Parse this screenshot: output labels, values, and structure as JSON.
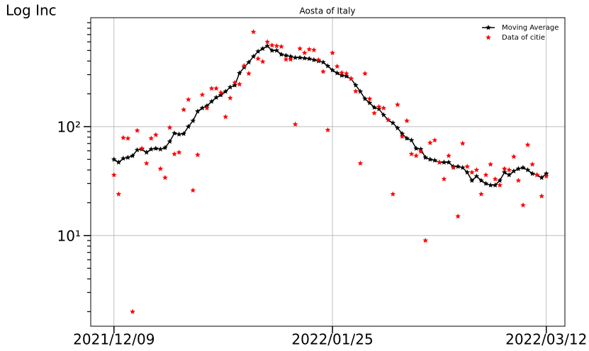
{
  "chart_data": {
    "type": "line",
    "title": "Aosta of Italy",
    "ylabel": "Log Inc",
    "log_y": true,
    "grid": true,
    "legend": "upper right",
    "x": [
      "2021/12/09",
      "2021/12/10",
      "2021/12/11",
      "2021/12/12",
      "2021/12/13",
      "2021/12/14",
      "2021/12/15",
      "2021/12/16",
      "2021/12/17",
      "2021/12/18",
      "2021/12/19",
      "2021/12/20",
      "2021/12/21",
      "2021/12/22",
      "2021/12/23",
      "2021/12/24",
      "2021/12/25",
      "2021/12/26",
      "2021/12/27",
      "2021/12/28",
      "2021/12/29",
      "2021/12/30",
      "2021/12/31",
      "2022/01/01",
      "2022/01/02",
      "2022/01/03",
      "2022/01/04",
      "2022/01/05",
      "2022/01/06",
      "2022/01/07",
      "2022/01/08",
      "2022/01/09",
      "2022/01/10",
      "2022/01/11",
      "2022/01/12",
      "2022/01/13",
      "2022/01/14",
      "2022/01/15",
      "2022/01/16",
      "2022/01/17",
      "2022/01/18",
      "2022/01/19",
      "2022/01/20",
      "2022/01/21",
      "2022/01/22",
      "2022/01/23",
      "2022/01/24",
      "2022/01/25",
      "2022/01/26",
      "2022/01/27",
      "2022/01/28",
      "2022/01/29",
      "2022/01/30",
      "2022/01/31",
      "2022/02/01",
      "2022/02/02",
      "2022/02/03",
      "2022/02/04",
      "2022/02/05",
      "2022/02/06",
      "2022/02/07",
      "2022/02/08",
      "2022/02/09",
      "2022/02/10",
      "2022/02/11",
      "2022/02/12",
      "2022/02/13",
      "2022/02/14",
      "2022/02/15",
      "2022/02/16",
      "2022/02/17",
      "2022/02/18",
      "2022/02/19",
      "2022/02/20",
      "2022/02/21",
      "2022/02/22",
      "2022/02/23",
      "2022/02/24",
      "2022/02/25",
      "2022/02/26",
      "2022/02/27",
      "2022/02/28",
      "2022/03/01",
      "2022/03/02",
      "2022/03/03",
      "2022/03/04",
      "2022/03/05",
      "2022/03/06",
      "2022/03/07",
      "2022/03/08",
      "2022/03/09",
      "2022/03/10",
      "2022/03/11",
      "2022/03/12"
    ],
    "series": [
      {
        "name": "Moving Average",
        "color": "#000000",
        "style": "line",
        "values": [
          50,
          47,
          51,
          52,
          54,
          61,
          62,
          58,
          62,
          63,
          62,
          64,
          73,
          87,
          85,
          86,
          100,
          113,
          138,
          148,
          155,
          170,
          185,
          195,
          210,
          230,
          240,
          310,
          350,
          390,
          440,
          490,
          520,
          550,
          500,
          500,
          460,
          450,
          440,
          430,
          430,
          425,
          420,
          410,
          400,
          390,
          360,
          330,
          310,
          295,
          290,
          275,
          240,
          210,
          180,
          165,
          150,
          145,
          128,
          115,
          108,
          97,
          86,
          78,
          75,
          63,
          62,
          52,
          50,
          49,
          47,
          47,
          47,
          43,
          43,
          42,
          38,
          32,
          35,
          32,
          30,
          29,
          29,
          32,
          38,
          36,
          39,
          41,
          42,
          40,
          37,
          36,
          34,
          37
        ]
      },
      {
        "name": "Data of citie",
        "color": "#ff0000",
        "style": "scatter",
        "values": [
          36,
          24,
          79,
          78,
          2,
          92,
          63,
          46,
          78,
          84,
          41,
          34,
          98,
          56,
          58,
          143,
          177,
          26,
          55,
          196,
          148,
          224,
          224,
          205,
          123,
          183,
          253,
          245,
          362,
          307,
          740,
          420,
          395,
          600,
          558,
          550,
          543,
          414,
          414,
          105,
          520,
          475,
          512,
          505,
          410,
          320,
          93,
          475,
          357,
          312,
          307,
          276,
          211,
          46,
          307,
          180,
          133,
          152,
          148,
          115,
          24,
          159,
          81,
          113,
          56,
          54,
          59,
          9,
          71,
          75,
          47,
          33,
          54,
          42,
          15,
          70,
          43,
          38,
          40,
          24,
          36,
          45,
          33,
          29,
          41,
          40,
          53,
          32,
          19,
          68,
          45,
          36,
          23,
          35
        ]
      }
    ],
    "xlim": [
      "2021/12/04",
      "2022/03/16"
    ],
    "xticks": [
      "2021/12/09",
      "2022/01/25",
      "2022/03/12"
    ],
    "ylim": [
      1.47,
      1000
    ],
    "yticks": [
      {
        "value": 10,
        "label": "10¹"
      },
      {
        "value": 100,
        "label": "10²"
      }
    ],
    "yminorticks": [
      2,
      3,
      4,
      5,
      6,
      7,
      8,
      9,
      20,
      30,
      40,
      50,
      60,
      70,
      80,
      90,
      200,
      300,
      400,
      500,
      600,
      700,
      800,
      900
    ]
  }
}
